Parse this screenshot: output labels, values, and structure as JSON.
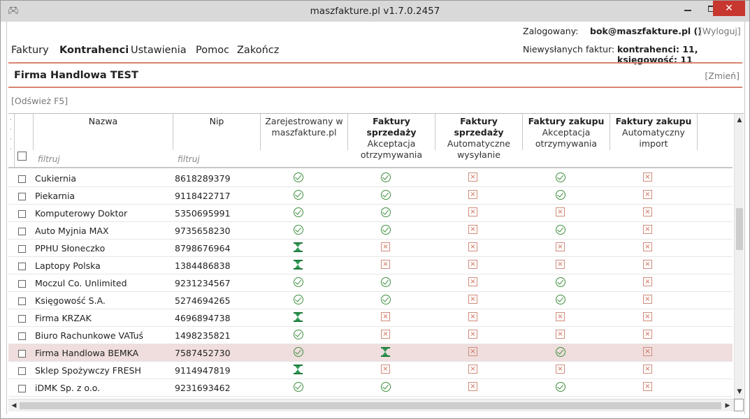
{
  "window": {
    "title": "maszfakture.pl   v1.7.0.2457"
  },
  "menu": {
    "items": [
      "Faktury",
      "Kontrahenci",
      "Ustawienia",
      "Pomoc",
      "Zakończ"
    ]
  },
  "login": {
    "label": "Zalogowany:",
    "user": "bok@maszfakture.pl ()",
    "logout": "[Wyloguj]"
  },
  "unsent": {
    "label": "Niewysłanych faktur:",
    "value": "kontrahenci: 11, księgowość: 11"
  },
  "company": {
    "name": "Firma Handlowa TEST",
    "change": "[Zmień]"
  },
  "refresh": "[Odśwież F5]",
  "grid": {
    "columns": [
      {
        "title": "Nazwa",
        "sub": ""
      },
      {
        "title": "Nip",
        "sub": ""
      },
      {
        "title": "",
        "sub": "Zarejestrowany w maszfakture.pl"
      },
      {
        "title": "Faktury sprzedaży",
        "sub": "Akceptacja otrzymywania"
      },
      {
        "title": "Faktury sprzedaży",
        "sub": "Automatyczne wysyłanie"
      },
      {
        "title": "Faktury zakupu",
        "sub": "Akceptacja otrzymywania"
      },
      {
        "title": "Faktury zakupu",
        "sub": "Automatyczny import"
      }
    ],
    "filter_placeholder": "filtruj",
    "rows": [
      {
        "name": "Cukiernia",
        "nip": "8618289379",
        "status": [
          "ok",
          "ok",
          "no",
          "ok",
          "no"
        ]
      },
      {
        "name": "Piekarnia",
        "nip": "9118422717",
        "status": [
          "ok",
          "ok",
          "no",
          "ok",
          "no"
        ]
      },
      {
        "name": "Komputerowy Doktor",
        "nip": "5350695991",
        "status": [
          "ok",
          "ok",
          "no",
          "no",
          "no"
        ]
      },
      {
        "name": "Auto Myjnia MAX",
        "nip": "9735658230",
        "status": [
          "ok",
          "ok",
          "no",
          "ok",
          "no"
        ]
      },
      {
        "name": "PPHU Słoneczko",
        "nip": "8798676964",
        "status": [
          "wait",
          "no",
          "no",
          "no",
          "no"
        ]
      },
      {
        "name": "Laptopy Polska",
        "nip": "1384486838",
        "status": [
          "wait",
          "no",
          "no",
          "no",
          "no"
        ]
      },
      {
        "name": "Moczul Co. Unlimited",
        "nip": "9231234567",
        "status": [
          "ok",
          "ok",
          "no",
          "ok",
          "no"
        ]
      },
      {
        "name": "Księgowość S.A.",
        "nip": "5274694265",
        "status": [
          "ok",
          "ok",
          "no",
          "ok",
          "no"
        ]
      },
      {
        "name": "Firma KRZAK",
        "nip": "4696894738",
        "status": [
          "wait",
          "no",
          "no",
          "no",
          "no"
        ]
      },
      {
        "name": "Biuro Rachunkowe VATuś",
        "nip": "1498235821",
        "status": [
          "ok",
          "no",
          "no",
          "no",
          "no"
        ]
      },
      {
        "name": "Firma Handlowa BEMKA",
        "nip": "7587452730",
        "status": [
          "ok",
          "wait",
          "no",
          "ok",
          "no"
        ],
        "highlight": true
      },
      {
        "name": "Sklep Spożywczy FRESH",
        "nip": "9114947819",
        "status": [
          "wait",
          "no",
          "no",
          "no",
          "no"
        ]
      },
      {
        "name": "iDMK Sp. z o.o.",
        "nip": "9231693462",
        "status": [
          "ok",
          "ok",
          "no",
          "ok",
          "no"
        ]
      }
    ]
  },
  "colors": {
    "accent_line": "#d98470",
    "ok": "#3f8f3f",
    "no": "#d06a55",
    "wait": "#2f9a55",
    "highlight_row": "#efdedd"
  }
}
